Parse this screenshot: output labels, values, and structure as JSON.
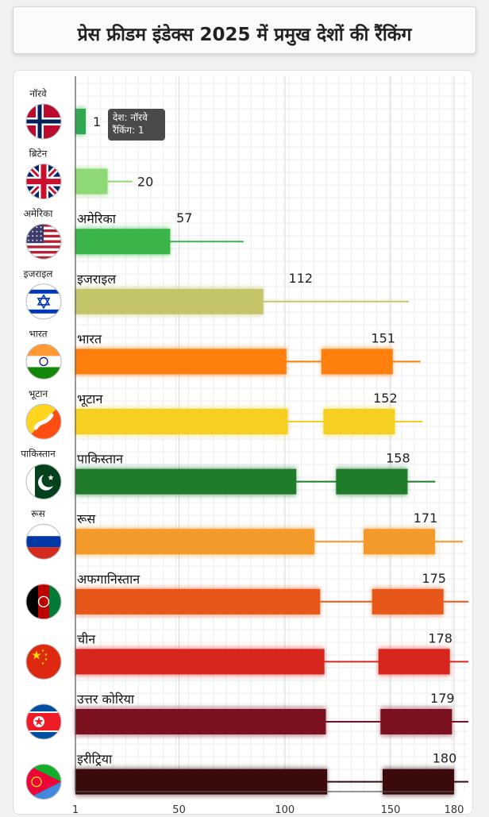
{
  "title": "प्रेस फ्रीडम इंडेक्स 2025 में प्रमुख देशों की रैंकिंग",
  "tooltip": {
    "line1": "देश: नॉरवे",
    "line2": "रैंकिंग: 1"
  },
  "chart_data": {
    "type": "bar",
    "orientation": "horizontal",
    "title": "प्रेस फ्रीडम इंडेक्स 2025 में प्रमुख देशों की रैंकिंग",
    "xlim": [
      1,
      180
    ],
    "xticks": [
      1,
      50,
      100,
      150,
      180
    ],
    "grid": true,
    "categories": [
      "नॉरवे",
      "ब्रिटेन",
      "अमेरिका",
      "इजराइल",
      "भारत",
      "भूटान",
      "पाकिस्तान",
      "रूस",
      "अफगानिस्तान",
      "चीन",
      "उत्तर कोरिया",
      "इरीट्रिया"
    ],
    "side_labels": [
      "नॉरवे",
      "ब्रिटेन",
      "अमेरिका",
      "इजराइल",
      "भारत",
      "भूटान",
      "पाकिस्तान",
      "रूस",
      "",
      "",
      "",
      ""
    ],
    "bar_labels": [
      "",
      "",
      "अमेरिका",
      "इजराइल",
      "भारत",
      "भूटान",
      "पाकिस्तान",
      "रूस",
      "अफगानिस्तान",
      "चीन",
      "उत्तर कोरिया",
      "इरीट्रिया"
    ],
    "values": [
      1,
      20,
      57,
      112,
      151,
      152,
      158,
      171,
      175,
      178,
      179,
      180
    ],
    "colors": [
      "#2fa84f",
      "#8fd876",
      "#3bb54a",
      "#c4c56a",
      "#ff7f0e",
      "#f5d020",
      "#1e7b2a",
      "#f39a2a",
      "#e8571a",
      "#d7261e",
      "#7a1020",
      "#3b0a0a"
    ],
    "flags": [
      "flag-norway",
      "flag-uk",
      "flag-usa",
      "flag-israel",
      "flag-india",
      "flag-bhutan",
      "flag-pakistan",
      "flag-russia",
      "flag-afghanistan",
      "flag-china",
      "flag-north-korea",
      "flag-eritrea"
    ]
  }
}
